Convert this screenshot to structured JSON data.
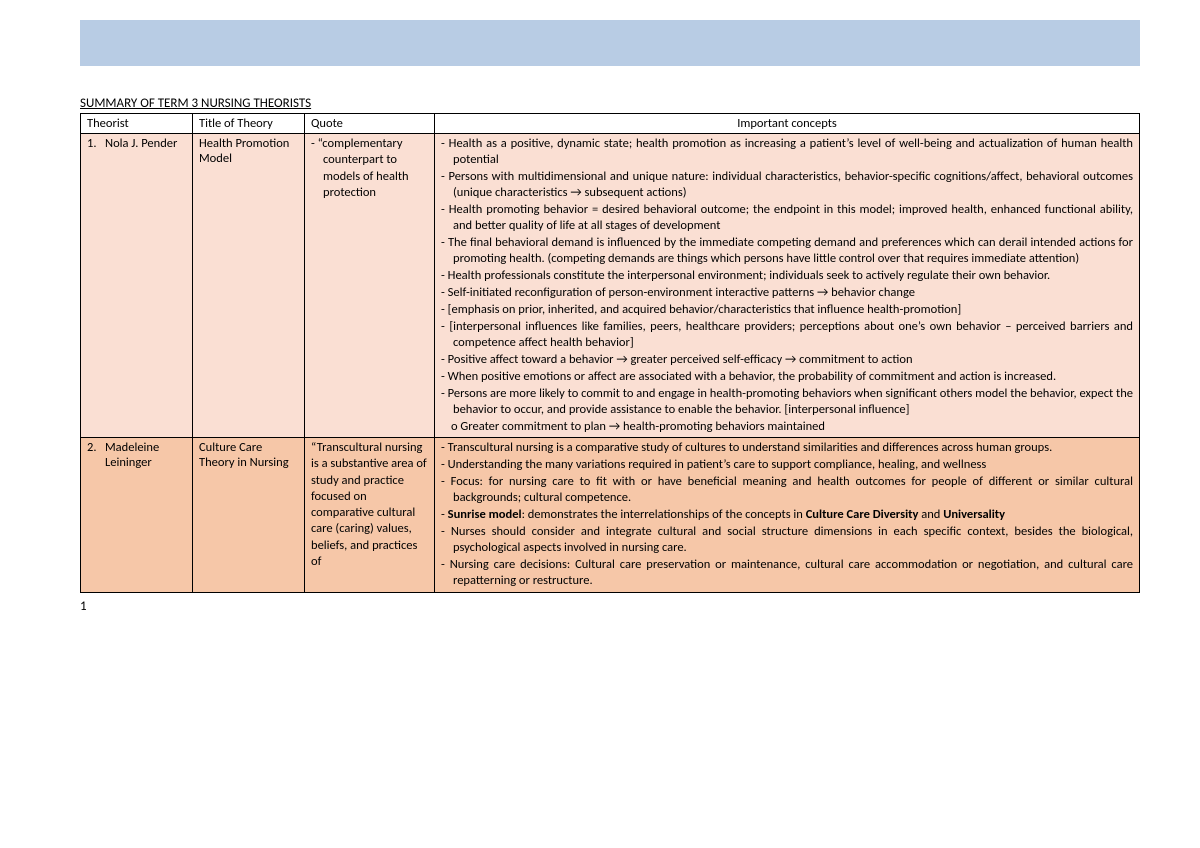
{
  "header_band_color": "#b8cce4",
  "title": "SUMMARY OF TERM 3 NURSING THEORISTS",
  "columns": {
    "c1": "Theorist",
    "c2": "Title of Theory",
    "c3": "Quote",
    "c4": "Important concepts"
  },
  "row1": {
    "num": "1.",
    "name": "Nola J. Pender",
    "theory": "Health Promotion Model",
    "quote": "“complementary counterpart to models of health protection",
    "concepts": [
      "Health as a positive, dynamic state; health promotion as increasing a patient’s level of well-being and actualization of human health potential",
      "Persons with multidimensional and unique nature: individual characteristics, behavior-specific cognitions/affect, behavioral outcomes (unique characteristics → subsequent actions)",
      "Health promoting behavior = desired behavioral outcome; the endpoint in this model; improved health, enhanced functional ability, and better quality of life at all stages of development",
      "The final behavioral demand is influenced by the immediate competing demand and preferences which can derail intended actions for promoting health. (competing demands are things which persons have little control over that requires immediate attention)",
      "Health professionals constitute the interpersonal environment; individuals seek to actively regulate their own behavior.",
      "Self-initiated reconfiguration of person-environment interactive patterns → behavior change",
      "[emphasis on prior, inherited, and acquired behavior/characteristics that influence health-promotion]",
      "[interpersonal influences like families, peers, healthcare providers; perceptions about one’s own behavior – perceived barriers and competence affect health behavior]",
      "Positive affect toward a behavior → greater perceived self-efficacy → commitment to action",
      "When positive emotions or affect are associated with a behavior, the probability of commitment and action is increased.",
      "Persons are more likely to commit to and engage in health-promoting behaviors when significant others model the behavior, expect the behavior to occur, and provide assistance to enable the behavior. [interpersonal influence]"
    ],
    "concept_sub": "Greater commitment to plan → health-promoting behaviors maintained"
  },
  "row2": {
    "num": "2.",
    "name": "Madeleine Leininger",
    "theory": "Culture Care Theory in Nursing",
    "quote": "“Transcultural nursing is a substantive area of study and practice focused on comparative cultural care (caring) values, beliefs, and practices of",
    "c1": "Transcultural nursing is a comparative study of cultures to understand similarities and differences across human groups.",
    "c2": "Understanding the many variations required in patient’s care to support compliance, healing, and wellness",
    "c3": "Focus: for nursing care to fit with or have beneficial meaning and health outcomes for people of different or similar cultural backgrounds; cultural competence.",
    "c4_pre": "Sunrise model",
    "c4_mid": ": demonstrates the interrelationships of the concepts in ",
    "c4_b1": "Culture Care Diversity",
    "c4_and": " and ",
    "c4_b2": "Universality",
    "c5": "Nurses should consider and integrate cultural and social structure dimensions in each specific context, besides the biological, psychological aspects involved in nursing care.",
    "c6": "Nursing care decisions: Cultural care preservation or maintenance, cultural care accommodation or negotiation, and cultural care repatterning or restructure."
  },
  "page_number": "1"
}
